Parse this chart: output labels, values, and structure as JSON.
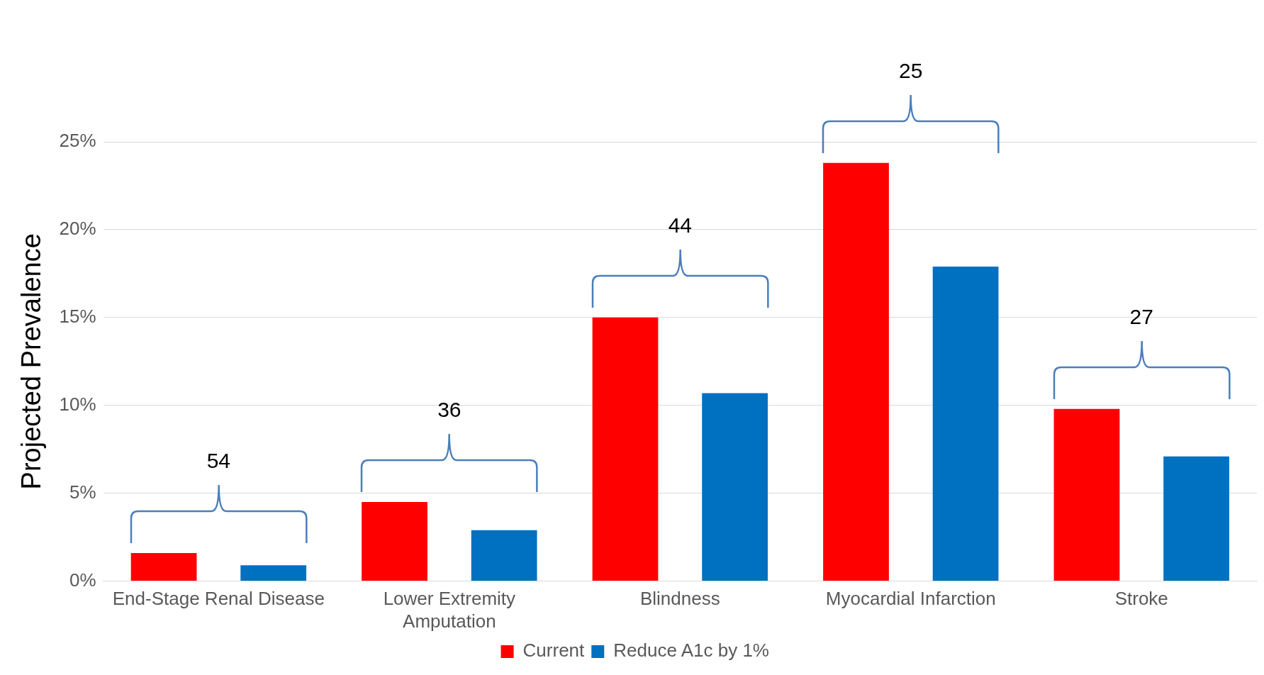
{
  "chart_data": {
    "type": "bar",
    "ylabel": "Projected Prevalence",
    "categories": [
      "End-Stage Renal Disease",
      "Lower Extremity Amputation",
      "Blindness",
      "Myocardial Infarction",
      "Stroke"
    ],
    "series": [
      {
        "name": "Current",
        "color": "#ff0000",
        "values": [
          1.6,
          4.5,
          15.0,
          23.8,
          9.8
        ]
      },
      {
        "name": "Reduce A1c by 1%",
        "color": "#0070c0",
        "values": [
          0.9,
          2.9,
          10.7,
          17.9,
          7.1
        ]
      }
    ],
    "ylim": [
      0,
      25
    ],
    "yticks": [
      {
        "value": 0,
        "label": "0%"
      },
      {
        "value": 5,
        "label": "5%"
      },
      {
        "value": 10,
        "label": "10%"
      },
      {
        "value": 15,
        "label": "15%"
      },
      {
        "value": 20,
        "label": "20%"
      },
      {
        "value": 25,
        "label": "25%"
      }
    ],
    "annotations": [
      "54",
      "36",
      "44",
      "25",
      "27"
    ],
    "grid": "y",
    "legend": "bottom"
  }
}
